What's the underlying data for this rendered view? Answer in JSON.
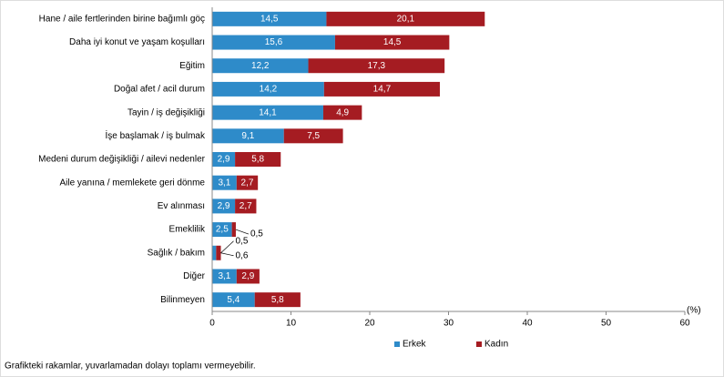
{
  "chart_data": {
    "type": "stacked-barh",
    "categories": [
      "Hane / aile fertlerinden birine bağımlı göç",
      "Daha iyi konut ve yaşam koşulları",
      "Eğitim",
      "Doğal afet / acil durum",
      "Tayin / iş değişikliği",
      "İşe başlamak / iş bulmak",
      "Medeni durum değişikliği / ailevi nedenler",
      "Aile yanına / memlekete geri dönme",
      "Ev alınması",
      "Emeklilik",
      "Sağlık / bakım",
      "Diğer",
      "Bilinmeyen"
    ],
    "series": [
      {
        "name": "Erkek",
        "color": "#2e8bc9",
        "values": [
          14.5,
          15.6,
          12.2,
          14.2,
          14.1,
          9.1,
          2.9,
          3.1,
          2.9,
          2.5,
          0.5,
          3.1,
          5.4
        ],
        "value_labels": [
          "14,5",
          "15,6",
          "12,2",
          "14,2",
          "14,1",
          "9,1",
          "2,9",
          "3,1",
          "2,9",
          "2,5",
          "0,5",
          "3,1",
          "5,4"
        ]
      },
      {
        "name": "Kadın",
        "color": "#a51c22",
        "values": [
          20.1,
          14.5,
          17.3,
          14.7,
          4.9,
          7.5,
          5.8,
          2.7,
          2.7,
          0.5,
          0.6,
          2.9,
          5.8
        ],
        "value_labels": [
          "20,1",
          "14,5",
          "17,3",
          "14,7",
          "4,9",
          "7,5",
          "5,8",
          "2,7",
          "2,7",
          "0,5",
          "0,6",
          "2,9",
          "5,8"
        ]
      }
    ],
    "xlabel": "(%)",
    "xlim": [
      0,
      60
    ],
    "xticks": [
      0,
      10,
      20,
      30,
      40,
      50,
      60
    ],
    "note": "Grafikteki rakamlar, yuvarlamadan dolayı toplamı vermeyebilir."
  }
}
